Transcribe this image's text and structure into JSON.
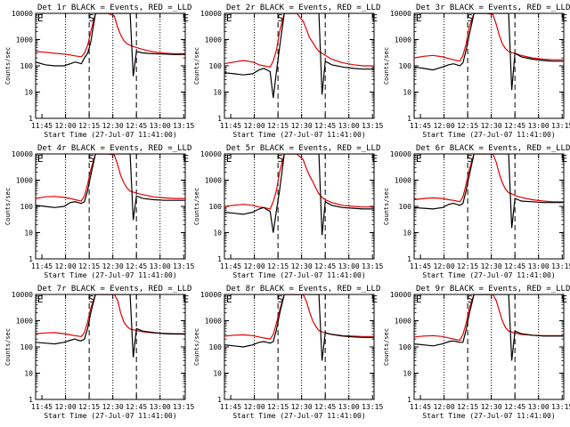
{
  "colors": {
    "events": "#000000",
    "lld": "#e00000",
    "background": "#ffffff"
  },
  "shared": {
    "xlabel": "Start Time (27-Jul-07 11:41:00)",
    "ylabel": "Counts/sec",
    "x_ticks": [
      "11:45",
      "12:00",
      "12:15",
      "12:30",
      "12:45",
      "13:00",
      "13:15"
    ],
    "y_ticks": [
      "1",
      "10",
      "100",
      "1000",
      "10000"
    ],
    "region_labels": [
      "E",
      "S",
      "E"
    ]
  },
  "chart_data": [
    {
      "type": "line",
      "title": "Det 1r BLACK = Events, RED =_LLD",
      "x_unit": "minutes after 11:41:00",
      "ylim": [
        1,
        10000
      ],
      "yscale": "log",
      "x": [
        0,
        6,
        12,
        18,
        22,
        25,
        27,
        29,
        31,
        33,
        35,
        38,
        42,
        46,
        50,
        52,
        54,
        56,
        58,
        60,
        62,
        64,
        68,
        75,
        82,
        88,
        95
      ],
      "series": [
        {
          "name": "Events",
          "values": [
            140,
            110,
            100,
            100,
            120,
            140,
            130,
            120,
            200,
            300,
            800,
            10000,
            10000,
            10000,
            10000,
            10000,
            10000,
            10000,
            10000,
            10000,
            40,
            350,
            310,
            290,
            280,
            270,
            270
          ]
        },
        {
          "name": "LLD",
          "values": [
            350,
            330,
            300,
            280,
            260,
            240,
            230,
            220,
            300,
            600,
            2000,
            10000,
            10000,
            10000,
            8000,
            3000,
            1500,
            900,
            700,
            600,
            550,
            500,
            420,
            340,
            300,
            290,
            290
          ]
        }
      ]
    },
    {
      "type": "line",
      "title": "Det 2r BLACK = Events, RED =_LLD",
      "x_unit": "minutes after 11:41:00",
      "ylim": [
        1,
        10000
      ],
      "yscale": "log",
      "x": [
        0,
        6,
        12,
        18,
        22,
        25,
        27,
        29,
        31,
        33,
        35,
        38,
        42,
        46,
        50,
        52,
        54,
        56,
        58,
        60,
        62,
        64,
        68,
        75,
        82,
        88,
        95
      ],
      "series": [
        {
          "name": "Events",
          "values": [
            55,
            50,
            45,
            50,
            70,
            80,
            70,
            60,
            6,
            60,
            500,
            10000,
            10000,
            10000,
            10000,
            10000,
            10000,
            10000,
            10000,
            10000,
            8,
            150,
            110,
            90,
            80,
            75,
            75
          ]
        },
        {
          "name": "LLD",
          "values": [
            120,
            140,
            160,
            140,
            110,
            100,
            95,
            90,
            150,
            400,
            2000,
            10000,
            10000,
            10000,
            5000,
            2500,
            1200,
            800,
            500,
            350,
            300,
            250,
            180,
            130,
            110,
            100,
            100
          ]
        }
      ]
    },
    {
      "type": "line",
      "title": "Det 3r BLACK = Events, RED =_LLD",
      "x_unit": "minutes after 11:41:00",
      "ylim": [
        1,
        10000
      ],
      "yscale": "log",
      "x": [
        0,
        6,
        12,
        18,
        22,
        25,
        27,
        29,
        31,
        33,
        35,
        38,
        42,
        46,
        50,
        52,
        54,
        56,
        58,
        60,
        62,
        64,
        68,
        75,
        82,
        88,
        95
      ],
      "series": [
        {
          "name": "Events",
          "values": [
            90,
            80,
            70,
            90,
            110,
            120,
            110,
            100,
            130,
            400,
            1500,
            10000,
            10000,
            10000,
            10000,
            10000,
            10000,
            10000,
            10000,
            10000,
            12,
            300,
            220,
            180,
            160,
            150,
            150
          ]
        },
        {
          "name": "LLD",
          "values": [
            200,
            230,
            250,
            220,
            190,
            170,
            160,
            150,
            250,
            700,
            3000,
            10000,
            10000,
            10000,
            9000,
            4000,
            1500,
            700,
            450,
            350,
            320,
            300,
            250,
            200,
            180,
            170,
            170
          ]
        }
      ]
    },
    {
      "type": "line",
      "title": "Det 4r BLACK = Events, RED =_LLD",
      "x_unit": "minutes after 11:41:00",
      "ylim": [
        1,
        10000
      ],
      "yscale": "log",
      "x": [
        0,
        6,
        12,
        18,
        22,
        25,
        27,
        29,
        31,
        33,
        35,
        38,
        42,
        46,
        50,
        52,
        54,
        56,
        58,
        60,
        62,
        64,
        68,
        75,
        82,
        88,
        95
      ],
      "series": [
        {
          "name": "Events",
          "values": [
            110,
            100,
            90,
            100,
            140,
            150,
            140,
            130,
            150,
            400,
            1500,
            10000,
            10000,
            10000,
            10000,
            10000,
            10000,
            10000,
            10000,
            10000,
            30,
            250,
            200,
            180,
            170,
            170,
            170
          ]
        },
        {
          "name": "LLD",
          "values": [
            200,
            230,
            240,
            220,
            200,
            180,
            170,
            160,
            250,
            700,
            2500,
            10000,
            10000,
            10000,
            9000,
            4000,
            1500,
            800,
            500,
            380,
            350,
            320,
            280,
            230,
            210,
            200,
            200
          ]
        }
      ]
    },
    {
      "type": "line",
      "title": "Det 5r BLACK = Events, RED =_LLD",
      "x_unit": "minutes after 11:41:00",
      "ylim": [
        1,
        10000
      ],
      "yscale": "log",
      "x": [
        0,
        6,
        12,
        18,
        22,
        25,
        27,
        29,
        31,
        33,
        35,
        38,
        42,
        46,
        50,
        52,
        54,
        56,
        58,
        60,
        62,
        64,
        68,
        75,
        82,
        88,
        95
      ],
      "series": [
        {
          "name": "Events",
          "values": [
            60,
            55,
            50,
            60,
            80,
            90,
            75,
            65,
            10,
            70,
            400,
            10000,
            10000,
            10000,
            10000,
            10000,
            10000,
            10000,
            10000,
            10000,
            8,
            150,
            110,
            90,
            85,
            80,
            80
          ]
        },
        {
          "name": "LLD",
          "values": [
            100,
            110,
            120,
            110,
            95,
            90,
            85,
            80,
            150,
            400,
            2000,
            10000,
            10000,
            10000,
            6000,
            2800,
            1500,
            900,
            500,
            300,
            220,
            180,
            140,
            110,
            100,
            95,
            95
          ]
        }
      ]
    },
    {
      "type": "line",
      "title": "Det 6r BLACK = Events, RED =_LLD",
      "x_unit": "minutes after 11:41:00",
      "ylim": [
        1,
        10000
      ],
      "yscale": "log",
      "x": [
        0,
        6,
        12,
        18,
        22,
        25,
        27,
        29,
        31,
        33,
        35,
        38,
        42,
        46,
        50,
        52,
        54,
        56,
        58,
        60,
        62,
        64,
        68,
        75,
        82,
        88,
        95
      ],
      "series": [
        {
          "name": "Events",
          "values": [
            90,
            85,
            80,
            90,
            120,
            130,
            120,
            110,
            130,
            400,
            1500,
            10000,
            10000,
            10000,
            10000,
            10000,
            10000,
            10000,
            10000,
            10000,
            15,
            200,
            160,
            150,
            140,
            140,
            140
          ]
        },
        {
          "name": "LLD",
          "values": [
            180,
            200,
            210,
            200,
            180,
            170,
            160,
            150,
            230,
            700,
            2500,
            10000,
            10000,
            10000,
            10000,
            5000,
            1800,
            800,
            450,
            330,
            300,
            260,
            220,
            180,
            160,
            150,
            150
          ]
        }
      ]
    },
    {
      "type": "line",
      "title": "Det 7r BLACK = Events, RED =_LLD",
      "x_unit": "minutes after 11:41:00",
      "ylim": [
        1,
        10000
      ],
      "yscale": "log",
      "x": [
        0,
        6,
        12,
        18,
        22,
        25,
        27,
        29,
        31,
        33,
        35,
        38,
        42,
        46,
        50,
        52,
        54,
        56,
        58,
        60,
        62,
        64,
        68,
        75,
        82,
        88,
        95
      ],
      "series": [
        {
          "name": "Events",
          "values": [
            150,
            140,
            130,
            150,
            180,
            200,
            180,
            170,
            200,
            500,
            2000,
            10000,
            10000,
            10000,
            10000,
            10000,
            10000,
            10000,
            10000,
            10000,
            40,
            500,
            400,
            350,
            320,
            310,
            310
          ]
        },
        {
          "name": "LLD",
          "values": [
            320,
            340,
            350,
            320,
            290,
            270,
            260,
            250,
            350,
            900,
            3000,
            10000,
            10000,
            10000,
            10000,
            6000,
            2000,
            900,
            600,
            480,
            450,
            420,
            380,
            340,
            330,
            320,
            320
          ]
        }
      ]
    },
    {
      "type": "line",
      "title": "Det 8r BLACK = Events, RED =_LLD",
      "x_unit": "minutes after 11:41:00",
      "ylim": [
        1,
        10000
      ],
      "yscale": "log",
      "x": [
        0,
        6,
        12,
        18,
        22,
        25,
        27,
        29,
        31,
        33,
        35,
        38,
        42,
        46,
        50,
        52,
        54,
        56,
        58,
        60,
        62,
        64,
        68,
        75,
        82,
        88,
        95
      ],
      "series": [
        {
          "name": "Events",
          "values": [
            120,
            110,
            100,
            120,
            150,
            160,
            150,
            140,
            160,
            450,
            1800,
            10000,
            10000,
            10000,
            10000,
            10000,
            10000,
            10000,
            10000,
            10000,
            30,
            350,
            300,
            260,
            240,
            230,
            230
          ]
        },
        {
          "name": "LLD",
          "values": [
            260,
            280,
            290,
            270,
            240,
            220,
            210,
            200,
            300,
            800,
            2500,
            10000,
            10000,
            10000,
            10000,
            5500,
            2200,
            1000,
            600,
            420,
            380,
            340,
            300,
            270,
            260,
            250,
            250
          ]
        }
      ]
    },
    {
      "type": "line",
      "title": "Det 9r BLACK = Events, RED =_LLD",
      "x_unit": "minutes after 11:41:00",
      "ylim": [
        1,
        10000
      ],
      "yscale": "log",
      "x": [
        0,
        6,
        12,
        18,
        22,
        25,
        27,
        29,
        31,
        33,
        35,
        38,
        42,
        46,
        50,
        52,
        54,
        56,
        58,
        60,
        62,
        64,
        68,
        75,
        82,
        88,
        95
      ],
      "series": [
        {
          "name": "Events",
          "values": [
            130,
            120,
            110,
            130,
            160,
            170,
            160,
            150,
            150,
            450,
            1800,
            10000,
            10000,
            10000,
            10000,
            10000,
            10000,
            10000,
            10000,
            10000,
            30,
            400,
            320,
            280,
            260,
            260,
            260
          ]
        },
        {
          "name": "LLD",
          "values": [
            240,
            260,
            270,
            250,
            220,
            200,
            190,
            180,
            300,
            800,
            3000,
            10000,
            10000,
            10000,
            10000,
            6000,
            2500,
            1000,
            550,
            400,
            370,
            340,
            300,
            280,
            270,
            270,
            270
          ]
        }
      ]
    }
  ]
}
